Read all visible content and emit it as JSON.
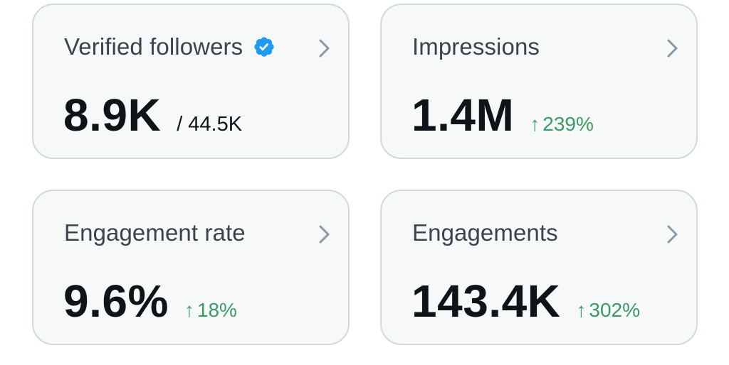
{
  "colors": {
    "card_background": "#f7f9f9",
    "card_border": "#cfd9de",
    "title_text": "#3a444c",
    "value_text": "#0f1419",
    "positive_change": "#3c9a64",
    "verified_badge": "#1d9bf0",
    "chevron": "#8b98a5"
  },
  "cards": [
    {
      "title": "Verified followers",
      "value": "8.9K",
      "total": "/ 44.5K",
      "icons": [
        "verified-badge-icon",
        "chevron-right-icon"
      ]
    },
    {
      "title": "Impressions",
      "value": "1.4M",
      "change_arrow": "↑",
      "change": "239%",
      "icons": [
        "arrow-up-icon",
        "chevron-right-icon"
      ]
    },
    {
      "title": "Engagement rate",
      "value": "9.6%",
      "change_arrow": "↑",
      "change": "18%",
      "icons": [
        "arrow-up-icon",
        "chevron-right-icon"
      ]
    },
    {
      "title": "Engagements",
      "value": "143.4K",
      "change_arrow": "↑",
      "change": "302%",
      "icons": [
        "arrow-up-icon",
        "chevron-right-icon"
      ]
    }
  ]
}
